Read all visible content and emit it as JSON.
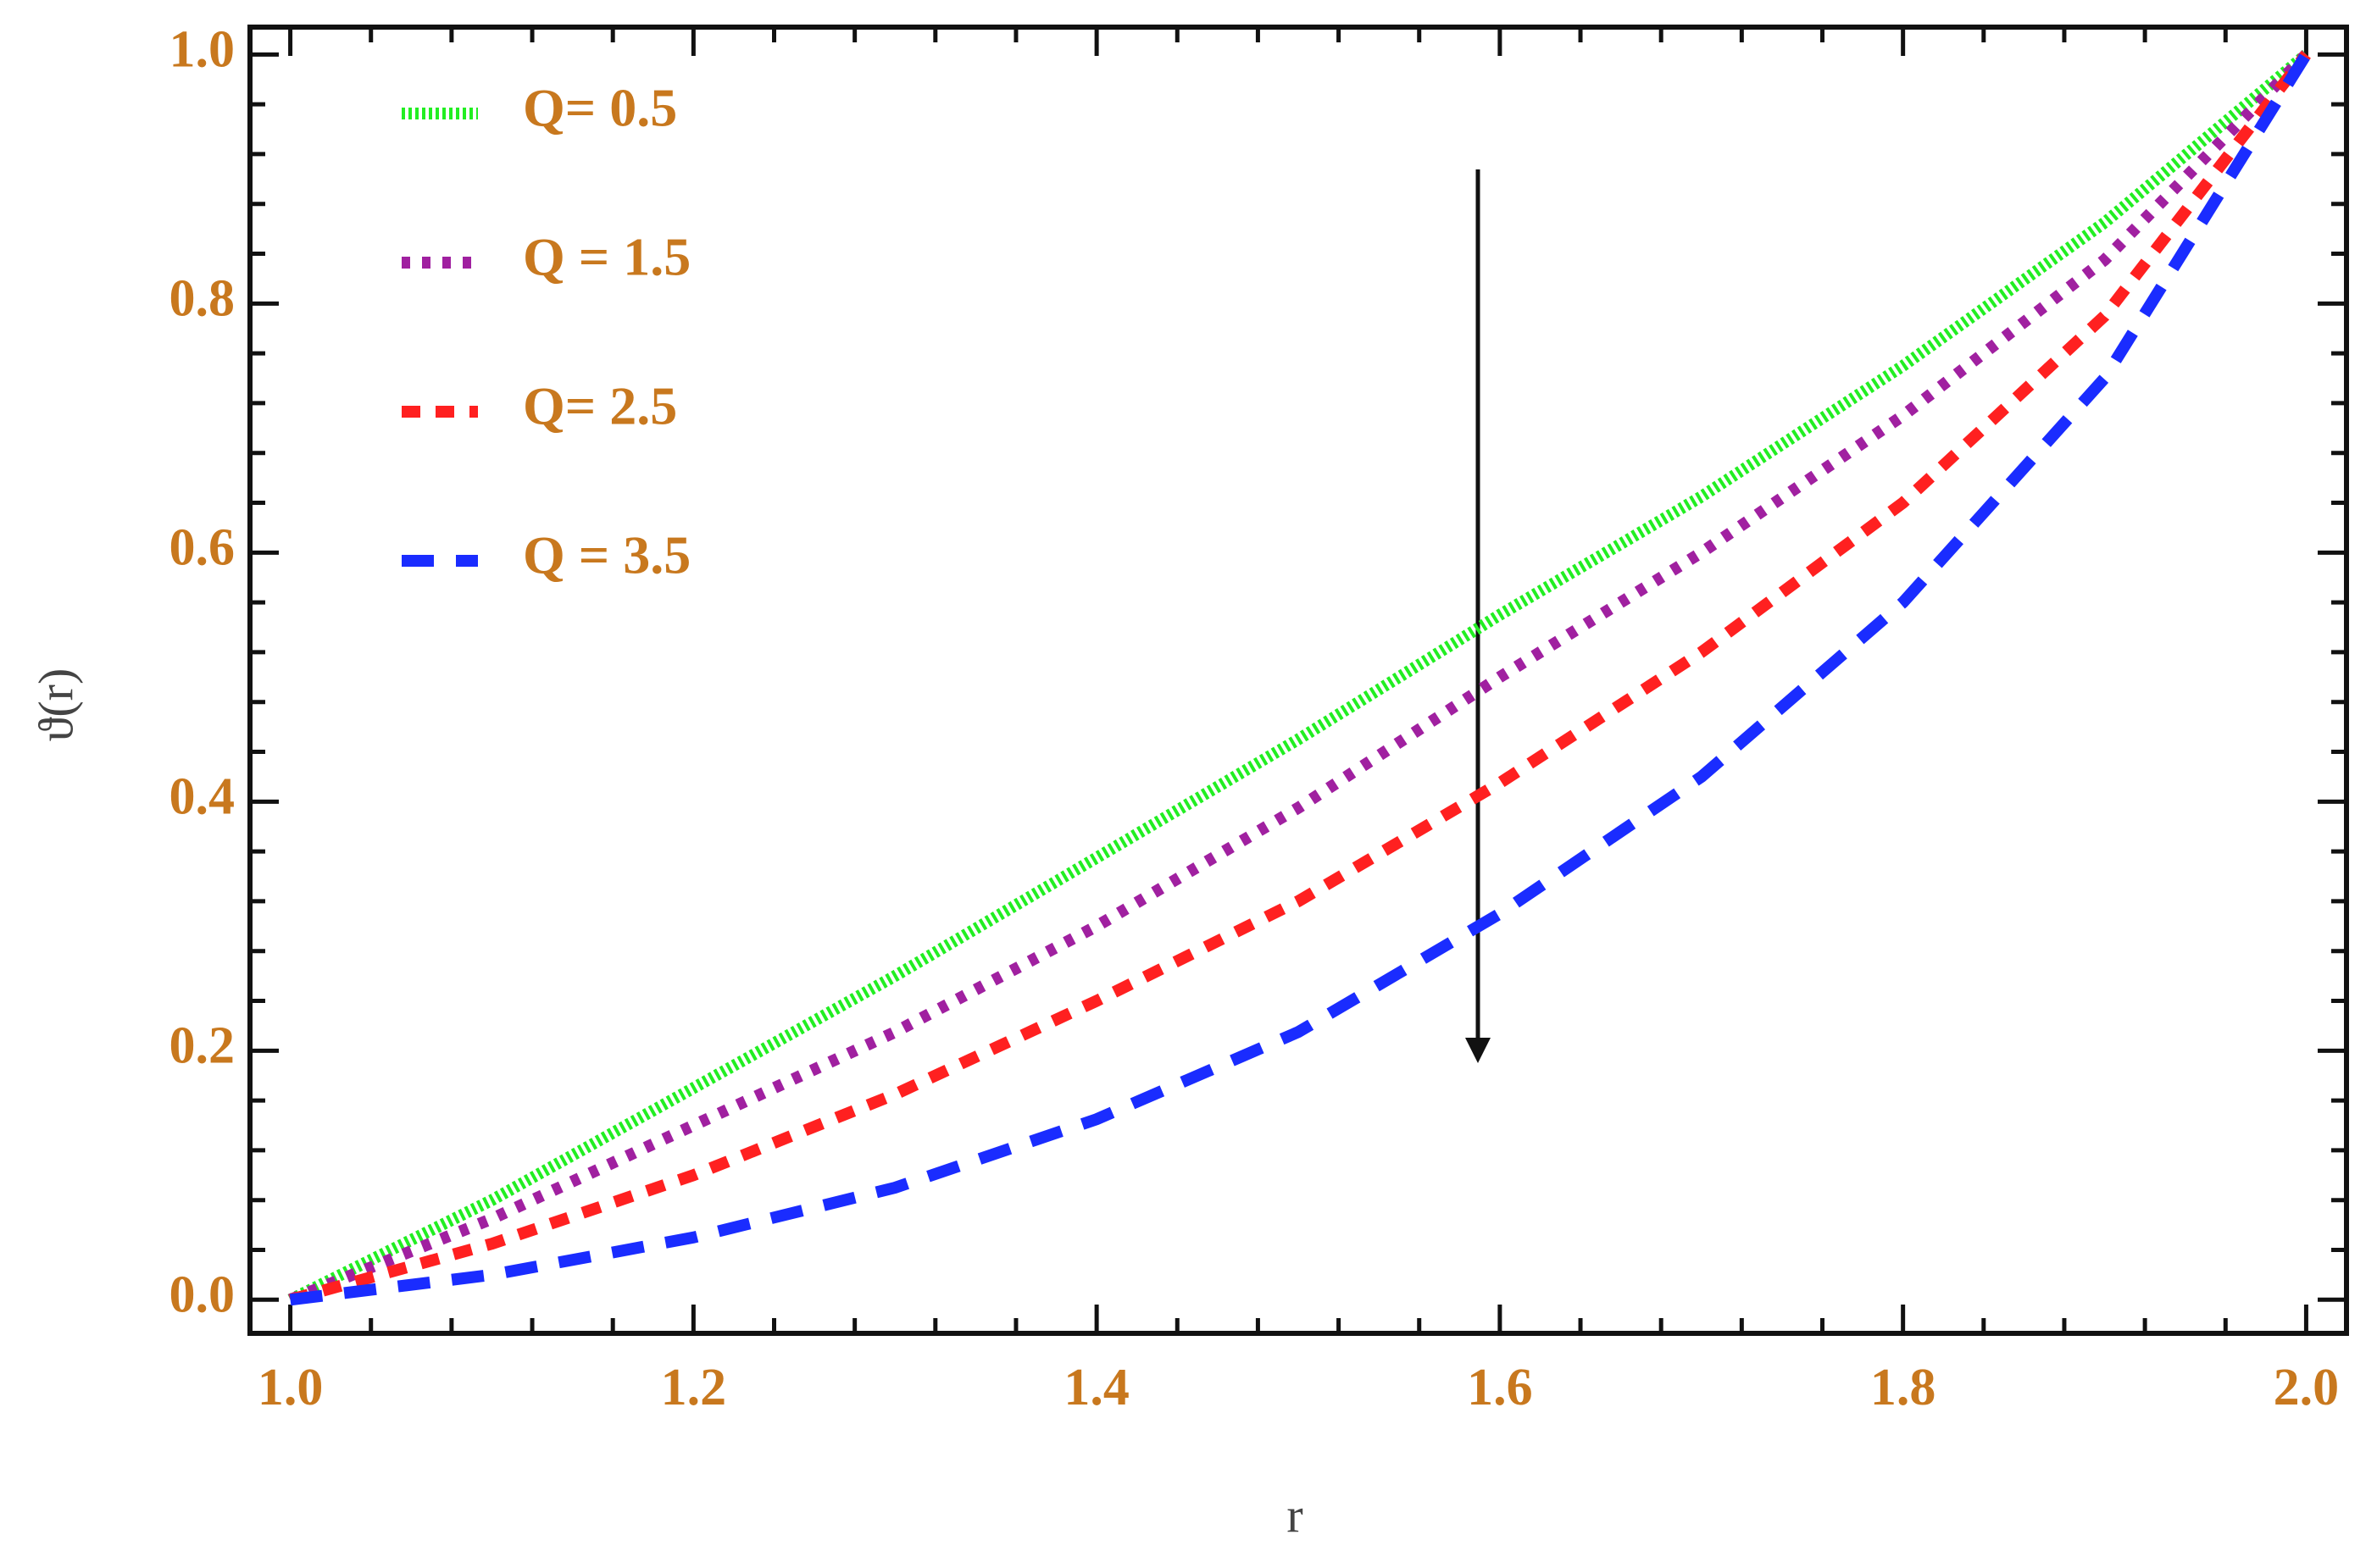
{
  "chart_data": {
    "type": "line",
    "x_label": "r",
    "y_label": "ϑ(r)",
    "x": [
      1.0,
      1.1,
      1.2,
      1.3,
      1.4,
      1.5,
      1.6,
      1.7,
      1.8,
      1.9,
      2.0
    ],
    "series": [
      {
        "name": "Q= 0.5",
        "color": "#22ee22",
        "values": [
          0,
          0.08,
          0.17,
          0.26,
          0.355,
          0.45,
          0.55,
          0.645,
          0.75,
          0.865,
          1.0
        ]
      },
      {
        "name": "Q = 1.5",
        "color": "#a020a0",
        "values": [
          0,
          0.065,
          0.14,
          0.215,
          0.3,
          0.395,
          0.5,
          0.6,
          0.71,
          0.835,
          1.0
        ]
      },
      {
        "name": " Q= 2.5",
        "color": "#ff2020",
        "values": [
          0,
          0.045,
          0.1,
          0.165,
          0.24,
          0.32,
          0.415,
          0.52,
          0.64,
          0.79,
          1.0
        ]
      },
      {
        "name": "Q = 3.5",
        "color": "#1a2cff",
        "values": [
          0,
          0.02,
          0.05,
          0.09,
          0.145,
          0.215,
          0.31,
          0.42,
          0.56,
          0.74,
          1.0
        ]
      }
    ],
    "xlim": [
      0.98,
      2.02
    ],
    "ylim": [
      -0.027,
      1.022
    ],
    "xticks": [
      {
        "value": 1.0,
        "label": "1.0"
      },
      {
        "value": 1.2,
        "label": "1.2"
      },
      {
        "value": 1.4,
        "label": "1.4"
      },
      {
        "value": 1.6,
        "label": "1.6"
      },
      {
        "value": 1.8,
        "label": "1.8"
      },
      {
        "value": 2.0,
        "label": "2.0"
      }
    ],
    "yticks": [
      {
        "value": 0.0,
        "label": "0.0"
      },
      {
        "value": 0.2,
        "label": "0.2"
      },
      {
        "value": 0.4,
        "label": "0.4"
      },
      {
        "value": 0.6,
        "label": "0.6"
      },
      {
        "value": 0.8,
        "label": "0.8"
      },
      {
        "value": 1.0,
        "label": "1.0"
      }
    ],
    "legend": "upper left"
  }
}
